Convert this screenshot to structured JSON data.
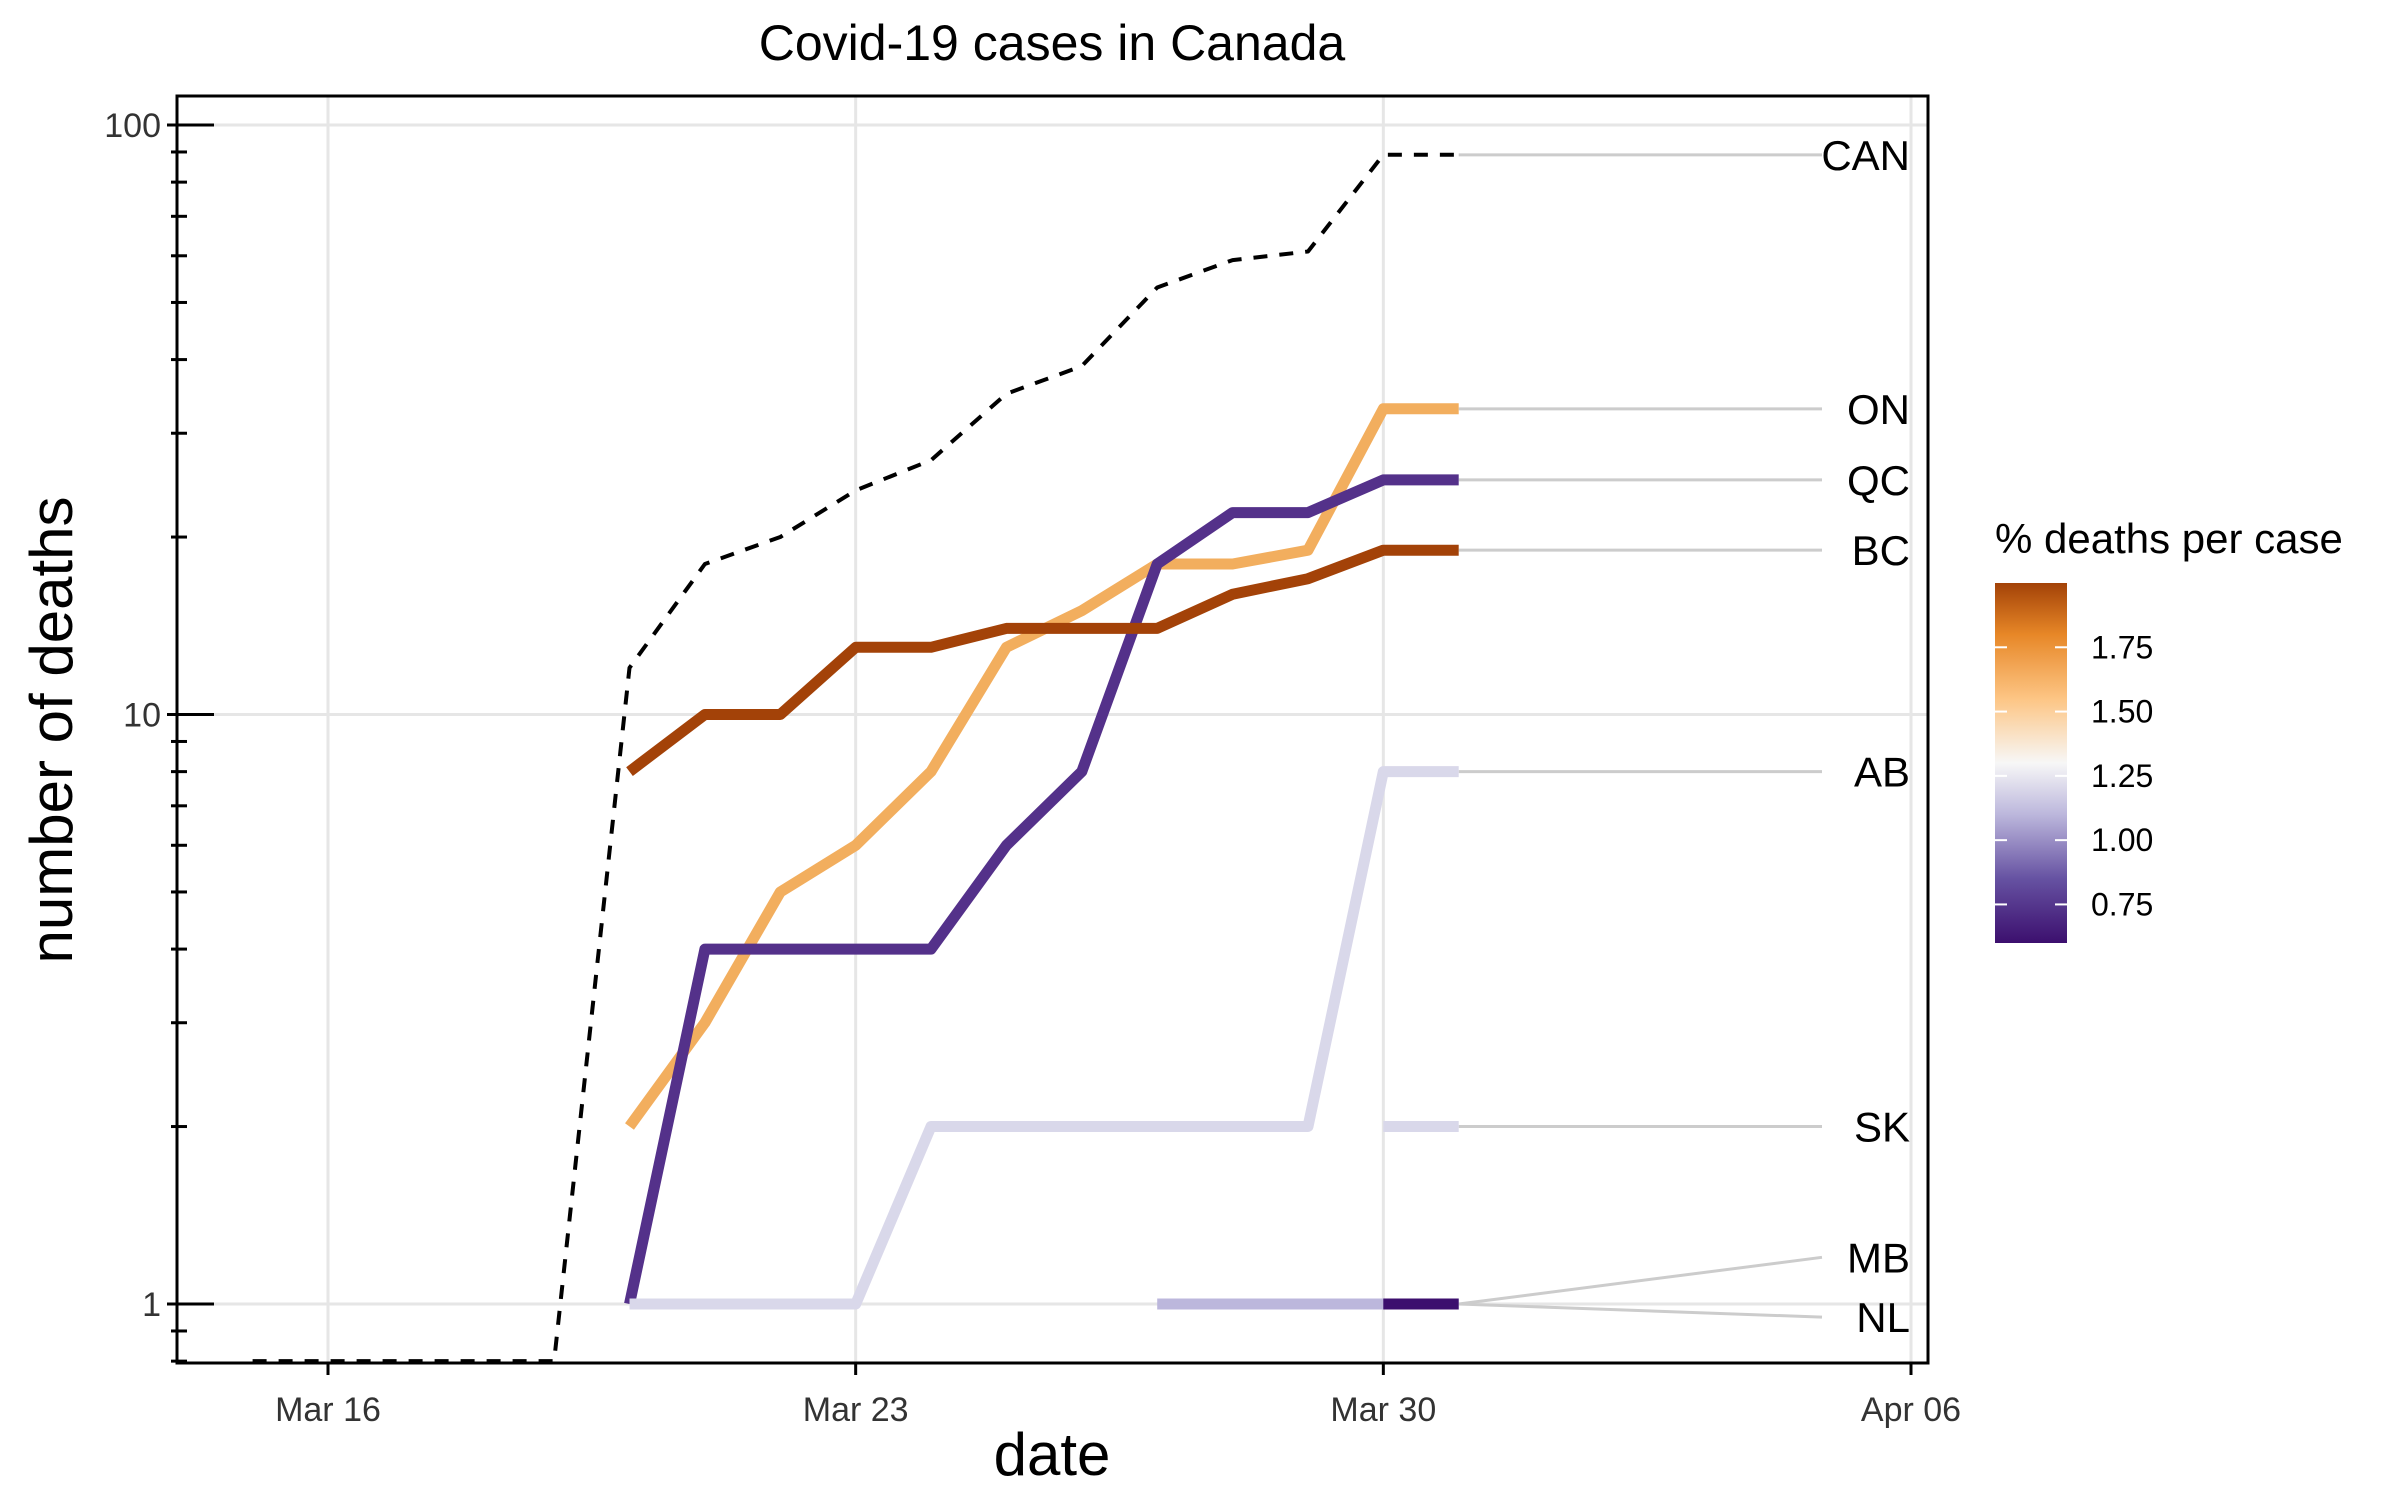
{
  "chart_data": {
    "type": "line",
    "title": "Covid-19 cases in Canada",
    "xlabel": "date",
    "ylabel": "number of deaths",
    "y_scale": "log10",
    "ylim": [
      0.8,
      125
    ],
    "xlim": [
      "2020-03-16",
      "2020-04-06"
    ],
    "x_ticks": [
      {
        "date": "2020-03-16",
        "label": "Mar 16"
      },
      {
        "date": "2020-03-23",
        "label": "Mar 23"
      },
      {
        "date": "2020-03-30",
        "label": "Mar 30"
      },
      {
        "date": "2020-04-06",
        "label": "Apr 06"
      }
    ],
    "y_ticks": [
      1,
      10,
      100
    ],
    "y_tick_labels": [
      "1",
      "10",
      "100"
    ],
    "grid": true,
    "legend": {
      "title": "% deaths per case",
      "placement": "right",
      "type": "colorbar",
      "range": [
        0.6,
        2.0
      ],
      "breaks": [
        0.75,
        1.0,
        1.25,
        1.5,
        1.75
      ],
      "break_labels": [
        "0.75",
        "1.00",
        "1.25",
        "1.50",
        "1.75"
      ],
      "palette": [
        {
          "value": 0.6,
          "color": "#3c0f6e"
        },
        {
          "value": 0.85,
          "color": "#6652a2"
        },
        {
          "value": 1.1,
          "color": "#bcb7dc"
        },
        {
          "value": 1.3,
          "color": "#f7f7f7"
        },
        {
          "value": 1.55,
          "color": "#fdc584"
        },
        {
          "value": 1.8,
          "color": "#e78727"
        },
        {
          "value": 2.0,
          "color": "#a34208"
        }
      ]
    },
    "series": [
      {
        "name": "CAN",
        "dashed": true,
        "color": "#000000",
        "points": [
          [
            "2020-03-15",
            0.8
          ],
          [
            "2020-03-19",
            0.8
          ],
          [
            "2020-03-20",
            12
          ],
          [
            "2020-03-21",
            18
          ],
          [
            "2020-03-22",
            20
          ],
          [
            "2020-03-23",
            24
          ],
          [
            "2020-03-24",
            27
          ],
          [
            "2020-03-25",
            35
          ],
          [
            "2020-03-26",
            39
          ],
          [
            "2020-03-27",
            53
          ],
          [
            "2020-03-28",
            59
          ],
          [
            "2020-03-29",
            61
          ],
          [
            "2020-03-30",
            89
          ],
          [
            "2020-03-31",
            89
          ]
        ]
      },
      {
        "name": "ON",
        "color": "#f2ae5e",
        "points": [
          [
            "2020-03-20",
            2
          ],
          [
            "2020-03-21",
            3
          ],
          [
            "2020-03-22",
            5
          ],
          [
            "2020-03-23",
            6
          ],
          [
            "2020-03-24",
            8
          ],
          [
            "2020-03-25",
            13
          ],
          [
            "2020-03-26",
            15
          ],
          [
            "2020-03-27",
            18
          ],
          [
            "2020-03-28",
            18
          ],
          [
            "2020-03-29",
            19
          ],
          [
            "2020-03-30",
            33
          ],
          [
            "2020-03-31",
            33
          ]
        ]
      },
      {
        "name": "QC",
        "color": "#54318a",
        "points": [
          [
            "2020-03-20",
            1
          ],
          [
            "2020-03-21",
            4
          ],
          [
            "2020-03-22",
            4
          ],
          [
            "2020-03-23",
            4
          ],
          [
            "2020-03-24",
            4
          ],
          [
            "2020-03-25",
            6
          ],
          [
            "2020-03-26",
            8
          ],
          [
            "2020-03-27",
            18
          ],
          [
            "2020-03-28",
            22
          ],
          [
            "2020-03-29",
            22
          ],
          [
            "2020-03-30",
            25
          ],
          [
            "2020-03-31",
            25
          ]
        ]
      },
      {
        "name": "BC",
        "color": "#a34208",
        "points": [
          [
            "2020-03-20",
            8
          ],
          [
            "2020-03-21",
            10
          ],
          [
            "2020-03-22",
            10
          ],
          [
            "2020-03-23",
            13
          ],
          [
            "2020-03-24",
            13
          ],
          [
            "2020-03-25",
            14
          ],
          [
            "2020-03-26",
            14
          ],
          [
            "2020-03-27",
            14
          ],
          [
            "2020-03-28",
            16
          ],
          [
            "2020-03-29",
            17
          ],
          [
            "2020-03-30",
            19
          ],
          [
            "2020-03-31",
            19
          ]
        ]
      },
      {
        "name": "AB",
        "color": "#d9d8ea",
        "points": [
          [
            "2020-03-20",
            1
          ],
          [
            "2020-03-21",
            1
          ],
          [
            "2020-03-22",
            1
          ],
          [
            "2020-03-23",
            1
          ],
          [
            "2020-03-24",
            2
          ],
          [
            "2020-03-25",
            2
          ],
          [
            "2020-03-26",
            2
          ],
          [
            "2020-03-27",
            2
          ],
          [
            "2020-03-28",
            2
          ],
          [
            "2020-03-29",
            2
          ],
          [
            "2020-03-30",
            8
          ],
          [
            "2020-03-31",
            8
          ]
        ]
      },
      {
        "name": "SK",
        "color": "#d9d8ea",
        "points": [
          [
            "2020-03-30",
            2
          ],
          [
            "2020-03-31",
            2
          ]
        ]
      },
      {
        "name": "MB",
        "color": "#bcb7dc",
        "points": [
          [
            "2020-03-27",
            1
          ],
          [
            "2020-03-28",
            1
          ],
          [
            "2020-03-29",
            1
          ],
          [
            "2020-03-30",
            1
          ],
          [
            "2020-03-31",
            1
          ]
        ]
      },
      {
        "name": "NL",
        "color": "#3c0f6e",
        "points": [
          [
            "2020-03-30",
            1
          ],
          [
            "2020-03-31",
            1
          ]
        ]
      }
    ],
    "end_labels": [
      {
        "name": "CAN",
        "y": 89
      },
      {
        "name": "ON",
        "y": 33
      },
      {
        "name": "QC",
        "y": 25
      },
      {
        "name": "BC",
        "y": 19
      },
      {
        "name": "AB",
        "y": 8
      },
      {
        "name": "SK",
        "y": 2
      },
      {
        "name": "MB",
        "y": 1.2
      },
      {
        "name": "NL",
        "y": 0.95
      }
    ]
  }
}
